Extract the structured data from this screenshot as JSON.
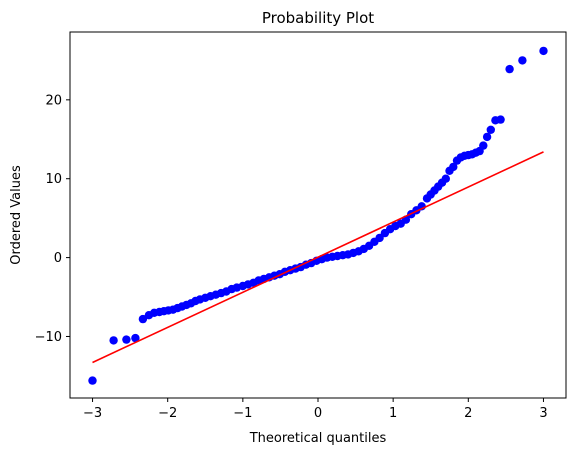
{
  "chart_data": {
    "type": "scatter",
    "title": "Probability Plot",
    "xlabel": "Theoretical quantiles",
    "ylabel": "Ordered Values",
    "xlim": [
      -3.3,
      3.3
    ],
    "ylim": [
      -17.8,
      28.6
    ],
    "xticks": [
      -3,
      -2,
      -1,
      0,
      1,
      2,
      3
    ],
    "xtick_labels": [
      "−3",
      "−2",
      "−1",
      "0",
      "1",
      "2",
      "3"
    ],
    "yticks": [
      -10,
      0,
      10,
      20
    ],
    "ytick_labels": [
      "−10",
      "0",
      "10",
      "20"
    ],
    "grid": false,
    "series": [
      {
        "kind": "points",
        "color": "#0000ff",
        "x": [
          -3.0,
          -2.72,
          -2.55,
          -2.43,
          -2.33,
          -2.25,
          -2.18,
          -2.11,
          -2.05,
          -1.99,
          -1.93,
          -1.87,
          -1.81,
          -1.75,
          -1.69,
          -1.63,
          -1.57,
          -1.5,
          -1.43,
          -1.36,
          -1.29,
          -1.22,
          -1.15,
          -1.08,
          -1.0,
          -0.93,
          -0.86,
          -0.79,
          -0.72,
          -0.65,
          -0.58,
          -0.51,
          -0.44,
          -0.37,
          -0.3,
          -0.23,
          -0.16,
          -0.09,
          -0.02,
          0.05,
          0.12,
          0.19,
          0.26,
          0.33,
          0.4,
          0.47,
          0.54,
          0.61,
          0.68,
          0.75,
          0.82,
          0.89,
          0.96,
          1.03,
          1.1,
          1.17,
          1.24,
          1.31,
          1.38,
          1.45,
          1.5,
          1.55,
          1.6,
          1.65,
          1.7,
          1.75,
          1.8,
          1.85,
          1.9,
          1.95,
          2.0,
          2.05,
          2.1,
          2.15,
          2.2,
          2.25,
          2.3,
          2.36,
          2.43,
          2.55,
          2.72,
          3.0
        ],
        "y": [
          -15.6,
          -10.5,
          -10.4,
          -10.2,
          -7.8,
          -7.3,
          -7.0,
          -6.9,
          -6.8,
          -6.7,
          -6.6,
          -6.4,
          -6.2,
          -6.0,
          -5.8,
          -5.5,
          -5.3,
          -5.1,
          -4.9,
          -4.7,
          -4.5,
          -4.3,
          -4.0,
          -3.8,
          -3.6,
          -3.4,
          -3.2,
          -2.9,
          -2.7,
          -2.5,
          -2.3,
          -2.1,
          -1.8,
          -1.6,
          -1.4,
          -1.2,
          -0.9,
          -0.7,
          -0.4,
          -0.2,
          0.0,
          0.1,
          0.2,
          0.3,
          0.4,
          0.6,
          0.8,
          1.1,
          1.5,
          2.0,
          2.5,
          3.1,
          3.6,
          4.0,
          4.3,
          4.8,
          5.5,
          6.0,
          6.5,
          7.5,
          8.0,
          8.5,
          9.0,
          9.5,
          10.0,
          11.0,
          11.5,
          12.3,
          12.7,
          12.9,
          13.0,
          13.1,
          13.3,
          13.5,
          14.2,
          15.3,
          16.2,
          17.4,
          17.5,
          23.9,
          25.0,
          26.2
        ]
      },
      {
        "kind": "fit-line",
        "color": "#ff0000",
        "x": [
          -3.0,
          3.0
        ],
        "y": [
          -13.3,
          13.4
        ]
      }
    ]
  }
}
